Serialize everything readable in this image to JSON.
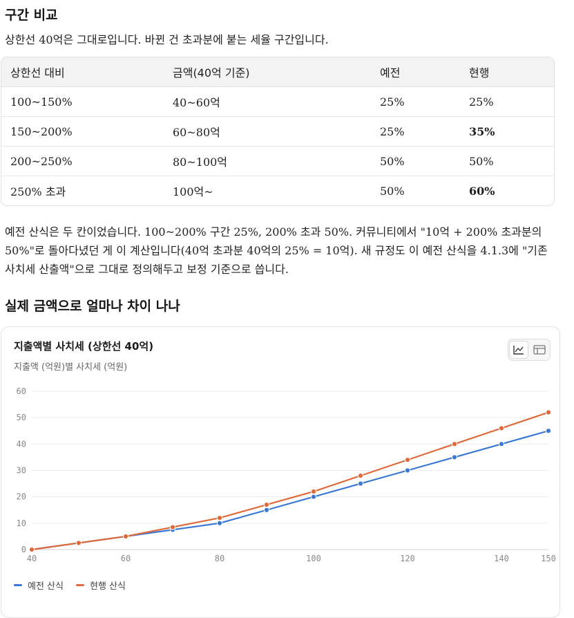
{
  "section": {
    "title": "구간 비교",
    "intro": "상한선 40억은 그대로입니다. 바뀐 건 초과분에 붙는 세율 구간입니다."
  },
  "table": {
    "headers": [
      "상한선 대비",
      "금액(40억 기준)",
      "예전",
      "현행"
    ],
    "rows": [
      {
        "ratio": "100~150%",
        "amount": "40~60억",
        "old": "25%",
        "new": "25%",
        "new_bold": false
      },
      {
        "ratio": "150~200%",
        "amount": "60~80억",
        "old": "25%",
        "new": "35%",
        "new_bold": true
      },
      {
        "ratio": "200~250%",
        "amount": "80~100억",
        "old": "50%",
        "new": "50%",
        "new_bold": false
      },
      {
        "ratio": "250% 초과",
        "amount": "100억~",
        "old": "50%",
        "new": "60%",
        "new_bold": true
      }
    ]
  },
  "paragraph": "예전 산식은 두 칸이었습니다. 100~200% 구간 25%, 200% 초과 50%. 커뮤니티에서 \"10억 + 200% 초과분의 50%\"로 돌아다녔던 게 이 계산입니다(40억 초과분 40억의 25% = 10억). 새 규정도 이 예전 산식을 4.1.3에 \"기존 사치세 산출액\"으로 그대로 정의해두고 보정 기준으로 씁니다.",
  "subsection": {
    "title": "실제 금액으로 얼마나 차이 나나"
  },
  "chart_data": {
    "type": "line",
    "title": "지출액별 사치세 (상한선 40억)",
    "subtitle": "지출액 (억원)별 사치세 (억원)",
    "x": [
      40,
      50,
      60,
      70,
      80,
      90,
      100,
      110,
      120,
      130,
      140,
      150
    ],
    "x_ticks": [
      40,
      60,
      80,
      100,
      120,
      140,
      150
    ],
    "y_ticks": [
      0,
      10,
      20,
      30,
      40,
      50,
      60
    ],
    "xlim": [
      40,
      150
    ],
    "ylim": [
      0,
      60
    ],
    "grid": true,
    "legend": "bottom-left",
    "series": [
      {
        "name": "예전 산식",
        "color": "#3a78d4",
        "values": [
          0,
          2.5,
          5,
          7.5,
          10,
          15,
          20,
          25,
          30,
          35,
          40,
          45
        ]
      },
      {
        "name": "현행 산식",
        "color": "#e0693a",
        "values": [
          0,
          2.5,
          5,
          8.5,
          12,
          17,
          22,
          28,
          34,
          40,
          46,
          52
        ]
      }
    ]
  },
  "chart_controls": {
    "line_icon": "line-chart-icon",
    "table_icon": "table-icon"
  }
}
